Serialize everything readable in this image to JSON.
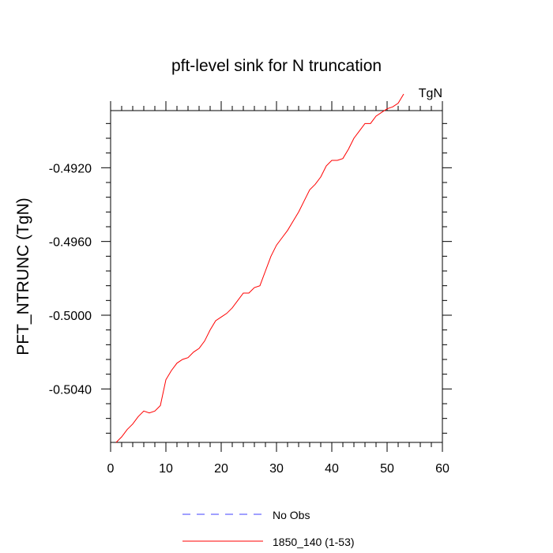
{
  "chart_data": {
    "type": "line",
    "title": "pft-level sink for N truncation",
    "units_label": "TgN",
    "xlabel": "",
    "ylabel": "PFT_NTRUNC  (TgN)",
    "xlim": [
      0,
      60
    ],
    "ylim": [
      -0.5069,
      -0.4889
    ],
    "x_ticks": [
      0,
      10,
      20,
      30,
      40,
      50,
      60
    ],
    "x_tick_labels": [
      "0",
      "10",
      "20",
      "30",
      "40",
      "50",
      "60"
    ],
    "y_ticks": [
      -0.504,
      -0.5,
      -0.496,
      -0.492
    ],
    "y_tick_labels": [
      "-0.5040",
      "-0.5000",
      "-0.4960",
      "-0.4920"
    ],
    "grid": false,
    "legend_placement": "bottom",
    "series": [
      {
        "name": "No Obs",
        "color": "#4040ff",
        "dash": "dashed",
        "x": [],
        "y": []
      },
      {
        "name": "1850_140 (1-53)",
        "color": "#ff0000",
        "dash": "solid",
        "x": [
          1,
          2,
          3,
          4,
          5,
          6,
          7,
          8,
          9,
          10,
          11,
          12,
          13,
          14,
          15,
          16,
          17,
          18,
          19,
          20,
          21,
          22,
          23,
          24,
          25,
          26,
          27,
          28,
          29,
          30,
          31,
          32,
          33,
          34,
          35,
          36,
          37,
          38,
          39,
          40,
          41,
          42,
          43,
          44,
          45,
          46,
          47,
          48,
          49,
          50,
          51,
          52,
          53
        ],
        "y": [
          -0.5069,
          -0.5066,
          -0.5062,
          -0.5059,
          -0.5055,
          -0.5052,
          -0.5053,
          -0.5052,
          -0.5049,
          -0.5035,
          -0.503,
          -0.5026,
          -0.5024,
          -0.5023,
          -0.502,
          -0.5018,
          -0.5014,
          -0.5008,
          -0.5003,
          -0.5001,
          -0.4999,
          -0.4996,
          -0.4992,
          -0.4988,
          -0.4988,
          -0.4985,
          -0.4984,
          -0.4976,
          -0.4968,
          -0.4962,
          -0.4958,
          -0.4954,
          -0.4949,
          -0.4944,
          -0.4938,
          -0.4932,
          -0.4929,
          -0.4925,
          -0.4919,
          -0.4916,
          -0.4916,
          -0.4915,
          -0.491,
          -0.4904,
          -0.49,
          -0.4896,
          -0.4896,
          -0.4892,
          -0.489,
          -0.4888,
          -0.4887,
          -0.4885,
          -0.488
        ]
      }
    ]
  }
}
